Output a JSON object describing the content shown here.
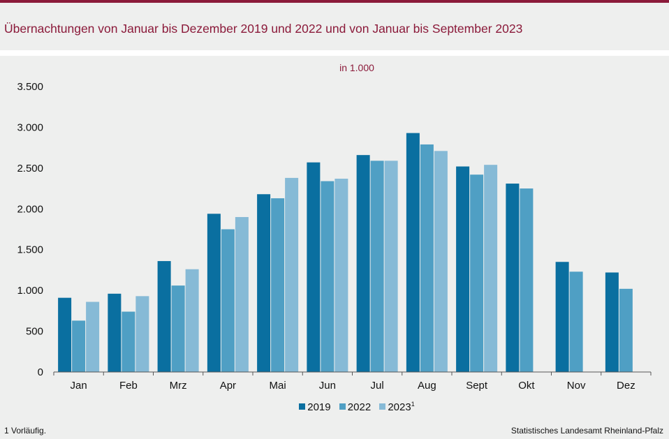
{
  "header": {
    "title": "Übernachtungen von Januar bis Dezember 2019 und 2022 und von Januar bis September 2023"
  },
  "footer": {
    "footnote": "1 Vorläufig.",
    "source": "Statistisches Landesamt Rheinland-Pfalz"
  },
  "colors": {
    "accent": "#8b1a3a",
    "series_2019": "#0a6fa0",
    "series_2022": "#4f9fc4",
    "series_2023": "#86bad6"
  },
  "chart_data": {
    "type": "bar",
    "title": "in 1.000",
    "xlabel": "",
    "ylabel": "",
    "ylim": [
      0,
      3500
    ],
    "yticks": [
      0,
      500,
      1000,
      1500,
      2000,
      2500,
      3000,
      3500
    ],
    "ytick_labels": [
      "0",
      "500",
      "1.000",
      "1.500",
      "2.000",
      "2.500",
      "3.000",
      "3.500"
    ],
    "grid": false,
    "legend_position": "bottom",
    "categories": [
      "Jan",
      "Feb",
      "Mrz",
      "Apr",
      "Mai",
      "Jun",
      "Jul",
      "Aug",
      "Sept",
      "Okt",
      "Nov",
      "Dez"
    ],
    "series": [
      {
        "name": "2019",
        "color": "#0a6fa0",
        "values": [
          910,
          960,
          1360,
          1940,
          2180,
          2570,
          2660,
          2930,
          2520,
          2310,
          1350,
          1220
        ]
      },
      {
        "name": "2022",
        "color": "#4f9fc4",
        "values": [
          630,
          740,
          1060,
          1750,
          2130,
          2340,
          2590,
          2790,
          2420,
          2250,
          1230,
          1020
        ]
      },
      {
        "name": "2023",
        "superscript": "1",
        "color": "#86bad6",
        "values": [
          860,
          930,
          1260,
          1900,
          2380,
          2370,
          2590,
          2710,
          2540,
          null,
          null,
          null
        ]
      }
    ]
  }
}
